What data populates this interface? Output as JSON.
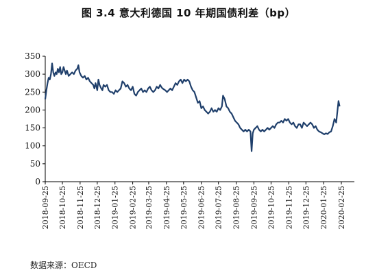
{
  "chart_data": {
    "type": "line",
    "title": "图 3.4  意大利德国 10 年期国债利差（bp）",
    "source": "数据来源：OECD",
    "xlabel": "",
    "ylabel": "",
    "ylim": [
      0,
      350
    ],
    "yticks": [
      0,
      50,
      100,
      150,
      200,
      250,
      300,
      350
    ],
    "x_tick_labels": [
      "2018-09-25",
      "2018-10-25",
      "2018-11-25",
      "2018-12-25",
      "2019-01-25",
      "2019-02-25",
      "2019-03-25",
      "2019-04-25",
      "2019-05-25",
      "2019-06-25",
      "2019-07-25",
      "2019-08-25",
      "2019-09-25",
      "2019-10-25",
      "2019-11-25",
      "2019-12-25",
      "2020-01-25",
      "2020-02-25"
    ],
    "grid": false,
    "line_color": "#1f3f6b",
    "series": [
      {
        "name": "",
        "points": [
          [
            "2018-09-25",
            230
          ],
          [
            "2018-09-27",
            255
          ],
          [
            "2018-09-29",
            275
          ],
          [
            "2018-10-01",
            290
          ],
          [
            "2018-10-03",
            285
          ],
          [
            "2018-10-05",
            300
          ],
          [
            "2018-10-07",
            330
          ],
          [
            "2018-10-09",
            305
          ],
          [
            "2018-10-11",
            295
          ],
          [
            "2018-10-13",
            305
          ],
          [
            "2018-10-15",
            300
          ],
          [
            "2018-10-17",
            315
          ],
          [
            "2018-10-19",
            305
          ],
          [
            "2018-10-21",
            320
          ],
          [
            "2018-10-23",
            300
          ],
          [
            "2018-10-25",
            305
          ],
          [
            "2018-10-27",
            320
          ],
          [
            "2018-10-29",
            310
          ],
          [
            "2018-10-31",
            300
          ],
          [
            "2018-11-02",
            310
          ],
          [
            "2018-11-05",
            295
          ],
          [
            "2018-11-08",
            300
          ],
          [
            "2018-11-11",
            305
          ],
          [
            "2018-11-14",
            300
          ],
          [
            "2018-11-17",
            310
          ],
          [
            "2018-11-20",
            315
          ],
          [
            "2018-11-22",
            325
          ],
          [
            "2018-11-24",
            305
          ],
          [
            "2018-11-27",
            295
          ],
          [
            "2018-11-30",
            290
          ],
          [
            "2018-12-03",
            295
          ],
          [
            "2018-12-06",
            285
          ],
          [
            "2018-12-09",
            290
          ],
          [
            "2018-12-12",
            280
          ],
          [
            "2018-12-15",
            275
          ],
          [
            "2018-12-18",
            270
          ],
          [
            "2018-12-20",
            260
          ],
          [
            "2018-12-22",
            275
          ],
          [
            "2018-12-25",
            255
          ],
          [
            "2018-12-27",
            285
          ],
          [
            "2018-12-29",
            270
          ],
          [
            "2019-01-01",
            260
          ],
          [
            "2019-01-03",
            255
          ],
          [
            "2019-01-05",
            270
          ],
          [
            "2019-01-08",
            265
          ],
          [
            "2019-01-11",
            270
          ],
          [
            "2019-01-14",
            255
          ],
          [
            "2019-01-17",
            250
          ],
          [
            "2019-01-20",
            250
          ],
          [
            "2019-01-23",
            245
          ],
          [
            "2019-01-26",
            255
          ],
          [
            "2019-01-29",
            250
          ],
          [
            "2019-02-01",
            255
          ],
          [
            "2019-02-04",
            260
          ],
          [
            "2019-02-07",
            280
          ],
          [
            "2019-02-10",
            275
          ],
          [
            "2019-02-13",
            265
          ],
          [
            "2019-02-16",
            270
          ],
          [
            "2019-02-19",
            260
          ],
          [
            "2019-02-22",
            255
          ],
          [
            "2019-02-25",
            265
          ],
          [
            "2019-02-28",
            245
          ],
          [
            "2019-03-03",
            240
          ],
          [
            "2019-03-06",
            250
          ],
          [
            "2019-03-09",
            255
          ],
          [
            "2019-03-12",
            260
          ],
          [
            "2019-03-15",
            250
          ],
          [
            "2019-03-18",
            255
          ],
          [
            "2019-03-21",
            250
          ],
          [
            "2019-03-24",
            260
          ],
          [
            "2019-03-27",
            265
          ],
          [
            "2019-03-30",
            255
          ],
          [
            "2019-04-02",
            250
          ],
          [
            "2019-04-05",
            255
          ],
          [
            "2019-04-08",
            265
          ],
          [
            "2019-04-11",
            260
          ],
          [
            "2019-04-14",
            270
          ],
          [
            "2019-04-17",
            262
          ],
          [
            "2019-04-20",
            258
          ],
          [
            "2019-04-23",
            255
          ],
          [
            "2019-04-26",
            250
          ],
          [
            "2019-04-29",
            255
          ],
          [
            "2019-05-02",
            260
          ],
          [
            "2019-05-05",
            255
          ],
          [
            "2019-05-08",
            265
          ],
          [
            "2019-05-11",
            275
          ],
          [
            "2019-05-14",
            270
          ],
          [
            "2019-05-17",
            280
          ],
          [
            "2019-05-20",
            285
          ],
          [
            "2019-05-23",
            275
          ],
          [
            "2019-05-26",
            285
          ],
          [
            "2019-05-29",
            280
          ],
          [
            "2019-06-01",
            285
          ],
          [
            "2019-06-04",
            280
          ],
          [
            "2019-06-07",
            265
          ],
          [
            "2019-06-10",
            255
          ],
          [
            "2019-06-13",
            250
          ],
          [
            "2019-06-16",
            235
          ],
          [
            "2019-06-19",
            220
          ],
          [
            "2019-06-22",
            225
          ],
          [
            "2019-06-25",
            205
          ],
          [
            "2019-06-28",
            210
          ],
          [
            "2019-07-01",
            200
          ],
          [
            "2019-07-04",
            195
          ],
          [
            "2019-07-07",
            190
          ],
          [
            "2019-07-10",
            195
          ],
          [
            "2019-07-13",
            205
          ],
          [
            "2019-07-16",
            195
          ],
          [
            "2019-07-19",
            200
          ],
          [
            "2019-07-22",
            195
          ],
          [
            "2019-07-25",
            205
          ],
          [
            "2019-07-28",
            200
          ],
          [
            "2019-07-31",
            210
          ],
          [
            "2019-08-02",
            240
          ],
          [
            "2019-08-05",
            230
          ],
          [
            "2019-08-08",
            210
          ],
          [
            "2019-08-11",
            205
          ],
          [
            "2019-08-14",
            195
          ],
          [
            "2019-08-17",
            190
          ],
          [
            "2019-08-20",
            180
          ],
          [
            "2019-08-23",
            170
          ],
          [
            "2019-08-26",
            165
          ],
          [
            "2019-08-29",
            160
          ],
          [
            "2019-09-01",
            150
          ],
          [
            "2019-09-04",
            145
          ],
          [
            "2019-09-07",
            140
          ],
          [
            "2019-09-10",
            145
          ],
          [
            "2019-09-13",
            140
          ],
          [
            "2019-09-16",
            145
          ],
          [
            "2019-09-19",
            140
          ],
          [
            "2019-09-21",
            85
          ],
          [
            "2019-09-23",
            135
          ],
          [
            "2019-09-25",
            145
          ],
          [
            "2019-09-28",
            150
          ],
          [
            "2019-10-01",
            155
          ],
          [
            "2019-10-04",
            145
          ],
          [
            "2019-10-07",
            140
          ],
          [
            "2019-10-10",
            145
          ],
          [
            "2019-10-13",
            140
          ],
          [
            "2019-10-16",
            145
          ],
          [
            "2019-10-19",
            150
          ],
          [
            "2019-10-22",
            145
          ],
          [
            "2019-10-25",
            150
          ],
          [
            "2019-10-28",
            155
          ],
          [
            "2019-10-31",
            150
          ],
          [
            "2019-11-03",
            160
          ],
          [
            "2019-11-06",
            165
          ],
          [
            "2019-11-09",
            165
          ],
          [
            "2019-11-12",
            170
          ],
          [
            "2019-11-15",
            165
          ],
          [
            "2019-11-18",
            175
          ],
          [
            "2019-11-21",
            170
          ],
          [
            "2019-11-24",
            175
          ],
          [
            "2019-11-27",
            165
          ],
          [
            "2019-11-30",
            160
          ],
          [
            "2019-12-03",
            165
          ],
          [
            "2019-12-06",
            155
          ],
          [
            "2019-12-09",
            150
          ],
          [
            "2019-12-12",
            160
          ],
          [
            "2019-12-15",
            160
          ],
          [
            "2019-12-18",
            150
          ],
          [
            "2019-12-21",
            165
          ],
          [
            "2019-12-24",
            160
          ],
          [
            "2019-12-27",
            155
          ],
          [
            "2019-12-30",
            160
          ],
          [
            "2020-01-02",
            165
          ],
          [
            "2020-01-05",
            160
          ],
          [
            "2020-01-08",
            150
          ],
          [
            "2020-01-11",
            155
          ],
          [
            "2020-01-14",
            145
          ],
          [
            "2020-01-17",
            140
          ],
          [
            "2020-01-20",
            138
          ],
          [
            "2020-01-23",
            135
          ],
          [
            "2020-01-26",
            132
          ],
          [
            "2020-01-29",
            135
          ],
          [
            "2020-02-01",
            133
          ],
          [
            "2020-02-04",
            138
          ],
          [
            "2020-02-07",
            140
          ],
          [
            "2020-02-10",
            155
          ],
          [
            "2020-02-13",
            175
          ],
          [
            "2020-02-16",
            165
          ],
          [
            "2020-02-18",
            195
          ],
          [
            "2020-02-20",
            225
          ],
          [
            "2020-02-22",
            210
          ]
        ]
      }
    ]
  }
}
